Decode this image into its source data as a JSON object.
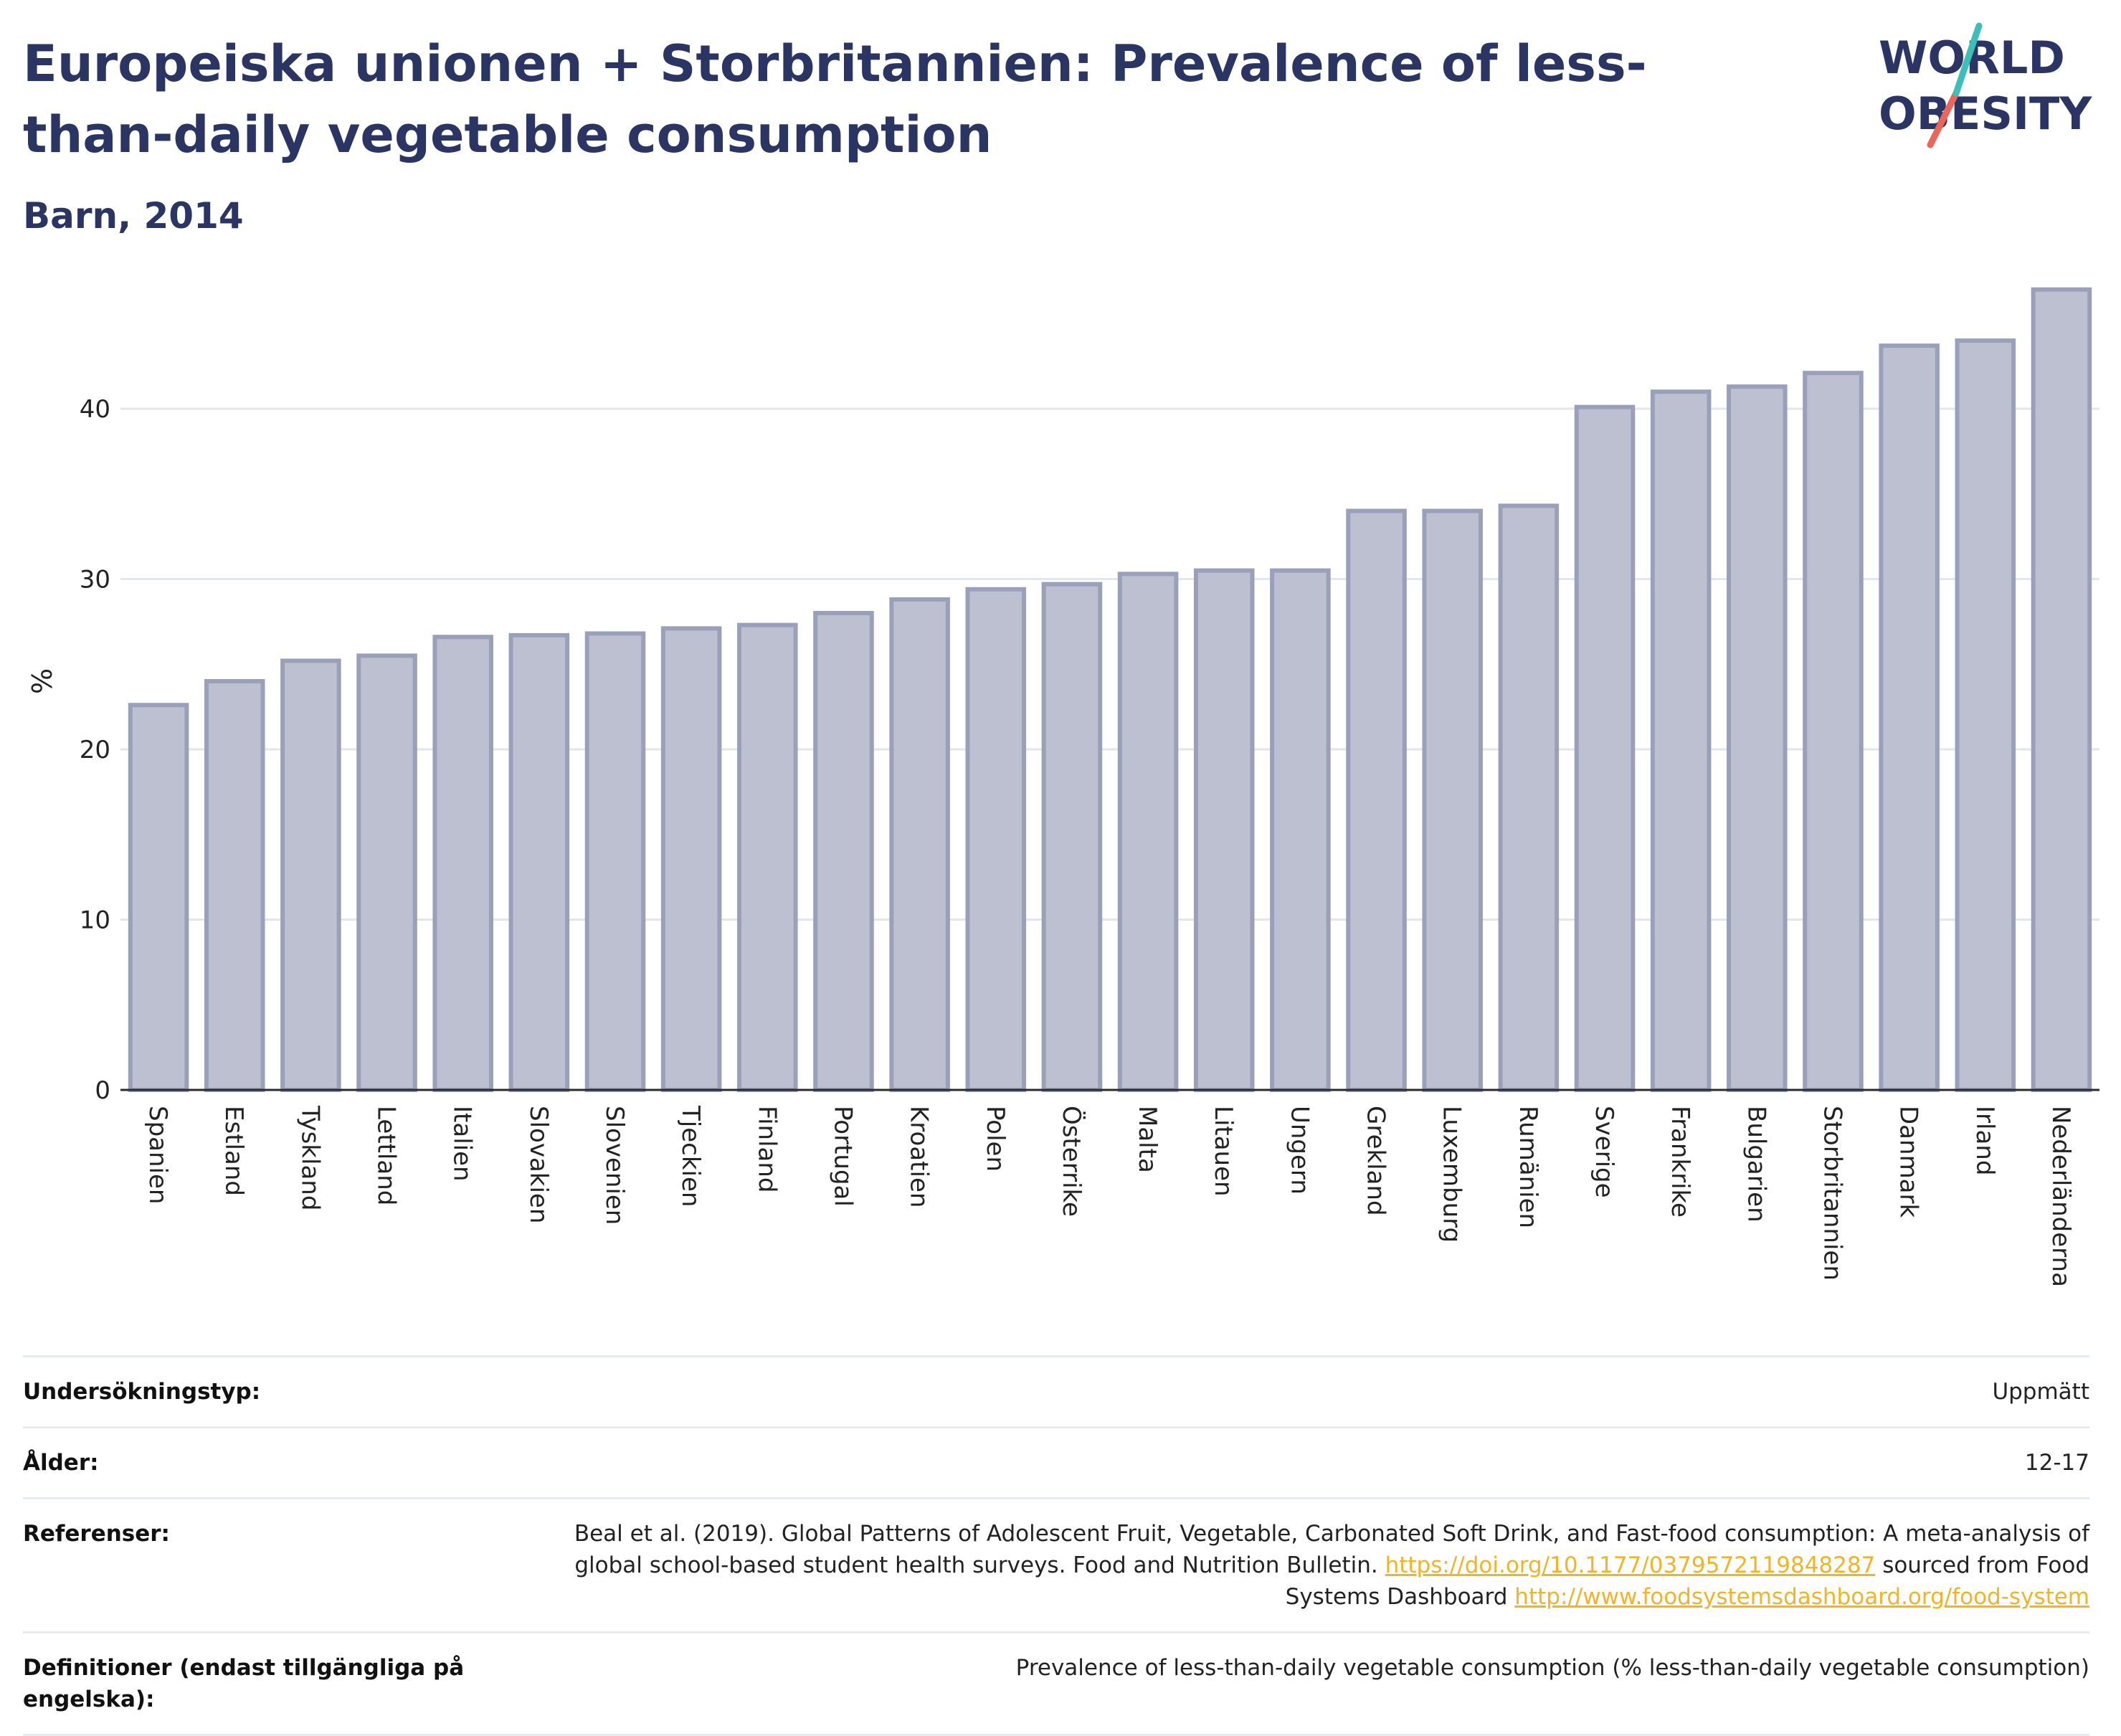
{
  "header": {
    "title": "Europeiska unionen + Storbritannien: Prevalence of less-than-daily vegetable consumption",
    "subtitle": "Barn, 2014"
  },
  "logo": {
    "line1": "WORLD",
    "line2": "OBESITY",
    "accent_colors": [
      "#3dbfb8",
      "#e8675a"
    ]
  },
  "colors": {
    "bar_fill": "#bcc0d0",
    "bar_stroke": "#9aa0ba",
    "gridline": "#e4e6ee",
    "axis": "#2b2b2b"
  },
  "chart_data": {
    "type": "bar",
    "ylabel": "%",
    "ylim": [
      0,
      48
    ],
    "yticks": [
      0,
      10,
      20,
      30,
      40
    ],
    "grid": true,
    "categories": [
      "Spanien",
      "Estland",
      "Tyskland",
      "Lettland",
      "Italien",
      "Slovakien",
      "Slovenien",
      "Tjeckien",
      "Finland",
      "Portugal",
      "Kroatien",
      "Polen",
      "Österrike",
      "Malta",
      "Litauen",
      "Ungern",
      "Grekland",
      "Luxemburg",
      "Rumänien",
      "Sverige",
      "Frankrike",
      "Bulgarien",
      "Storbritannien",
      "Danmark",
      "Irland",
      "Nederländerna"
    ],
    "values": [
      22.6,
      24.0,
      25.2,
      25.5,
      26.6,
      26.7,
      26.8,
      27.1,
      27.3,
      28.0,
      28.8,
      29.4,
      29.7,
      30.3,
      30.5,
      30.5,
      34.0,
      34.0,
      34.3,
      40.1,
      41.0,
      41.3,
      42.1,
      43.7,
      44.0,
      47.0
    ]
  },
  "meta": {
    "rows": [
      {
        "label": "Undersökningstyp:",
        "value": "Uppmätt"
      },
      {
        "label": "Ålder:",
        "value": "12-17"
      },
      {
        "label": "Referenser:",
        "value_prefix": "Beal et al. (2019). Global Patterns of Adolescent Fruit, Vegetable, Carbonated Soft Drink, and Fast-food consumption: A meta-analysis of global school-based student health surveys. Food and Nutrition Bulletin.",
        "link1": "https://doi.org/10.1177/0379572119848287",
        "value_middle": "sourced from Food Systems Dashboard",
        "link2": "http://www.foodsystemsdashboard.org/food-system"
      },
      {
        "label": "Definitioner (endast tillgängliga på engelska):",
        "value": "Prevalence of less-than-daily vegetable consumption (% less-than-daily vegetable consumption)"
      }
    ]
  }
}
